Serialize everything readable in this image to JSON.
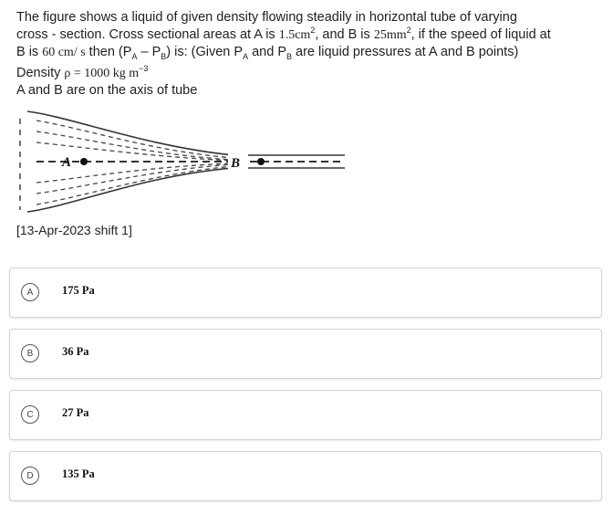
{
  "question": {
    "line1": "The figure shows a liquid of given density flowing steadily in horizontal tube of varying",
    "line2_a": "cross - section. Cross sectional areas at A is ",
    "area_a": "1.5cm",
    "area_a_exp": "2",
    "line2_b": ", and B is ",
    "area_b": "25mm",
    "area_b_exp": "2",
    "line2_c": ", if the speed of liquid at",
    "line3_a": "B is ",
    "speed": "60 cm/ s",
    "line3_b": " then (P",
    "sub_a1": "A",
    "line3_c": " – P",
    "sub_b1": "B",
    "line3_d": ") is: (Given P",
    "sub_a2": "A",
    "line3_e": " and P",
    "sub_b2": "B",
    "line3_f": " are liquid pressures at A and B points)",
    "density_label": "Density ",
    "density_value": "ρ = 1000 kg m",
    "density_exp": "−3",
    "axis_note": "A and B are on the axis of tube"
  },
  "figure": {
    "label_a": "A",
    "label_b": "B"
  },
  "source": "[13-Apr-2023 shift 1]",
  "options": [
    {
      "letter": "A",
      "value": "175 Pa"
    },
    {
      "letter": "B",
      "value": "36 Pa"
    },
    {
      "letter": "C",
      "value": "27 Pa"
    },
    {
      "letter": "D",
      "value": "135 Pa"
    }
  ]
}
